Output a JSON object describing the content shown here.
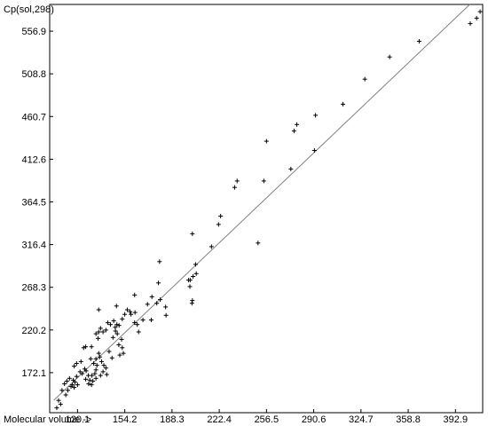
{
  "chart_data": {
    "type": "scatter",
    "title": "",
    "xlabel": "Molecular volume ->",
    "ylabel": "Cp(sol,298)",
    "xlim": [
      103,
      414
    ],
    "ylim": [
      127,
      602
    ],
    "x_ticks": [
      {
        "value": 120.1,
        "label": "120.1"
      },
      {
        "value": 154.2,
        "label": "154.2"
      },
      {
        "value": 188.3,
        "label": "188.3"
      },
      {
        "value": 222.4,
        "label": "222.4"
      },
      {
        "value": 256.5,
        "label": "256.5"
      },
      {
        "value": 290.6,
        "label": "290.6"
      },
      {
        "value": 324.7,
        "label": "324.7"
      },
      {
        "value": 358.8,
        "label": "358.8"
      },
      {
        "value": 392.9,
        "label": "392.9"
      }
    ],
    "y_ticks": [
      {
        "value": 172.1,
        "label": "172.1"
      },
      {
        "value": 220.2,
        "label": "220.2"
      },
      {
        "value": 268.3,
        "label": "268.3"
      },
      {
        "value": 316.4,
        "label": "316.4"
      },
      {
        "value": 364.5,
        "label": "364.5"
      },
      {
        "value": 412.6,
        "label": "412.6"
      },
      {
        "value": 460.7,
        "label": "460.7"
      },
      {
        "value": 508.8,
        "label": "508.8"
      },
      {
        "value": 556.9,
        "label": "556.9"
      }
    ],
    "grid": false,
    "point_marker": "+",
    "point_color": "#000000",
    "line_color": "#808080",
    "fit_line": {
      "x": [
        103,
        414
      ],
      "y": [
        141,
        603
      ]
    },
    "points": [
      [
        105.1,
        132.4
      ],
      [
        107.9,
        136.6
      ],
      [
        106.4,
        140.8
      ],
      [
        111.6,
        147.0
      ],
      [
        108.9,
        152.2
      ],
      [
        113.1,
        152.2
      ],
      [
        110.7,
        159.5
      ],
      [
        115.4,
        156.4
      ],
      [
        116.4,
        158.4
      ],
      [
        117.7,
        155.4
      ],
      [
        118.3,
        161.6
      ],
      [
        120.1,
        158.4
      ],
      [
        117.0,
        163.7
      ],
      [
        114.3,
        165.7
      ],
      [
        112.4,
        162.6
      ],
      [
        119.4,
        167.8
      ],
      [
        121.9,
        173.1
      ],
      [
        123.5,
        171.0
      ],
      [
        125.3,
        176.2
      ],
      [
        126.3,
        174.1
      ],
      [
        127.9,
        168.9
      ],
      [
        126.0,
        164.7
      ],
      [
        128.9,
        163.7
      ],
      [
        128.1,
        159.5
      ],
      [
        130.2,
        158.4
      ],
      [
        131.2,
        162.6
      ],
      [
        130.5,
        168.9
      ],
      [
        132.6,
        171.0
      ],
      [
        133.4,
        175.2
      ],
      [
        134.1,
        180.4
      ],
      [
        131.8,
        182.5
      ],
      [
        129.6,
        187.7
      ],
      [
        133.4,
        187.7
      ],
      [
        135.4,
        193.9
      ],
      [
        136.2,
        189.8
      ],
      [
        137.5,
        184.6
      ],
      [
        139.1,
        180.4
      ],
      [
        140.6,
        177.3
      ],
      [
        138.5,
        173.1
      ],
      [
        141.2,
        170.0
      ],
      [
        136.7,
        168.9
      ],
      [
        133.4,
        165.7
      ],
      [
        117.7,
        179.4
      ],
      [
        119.4,
        182.5
      ],
      [
        122.6,
        184.6
      ],
      [
        124.5,
        200.2
      ],
      [
        126.0,
        201.3
      ],
      [
        130.2,
        201.3
      ],
      [
        134.9,
        210.7
      ],
      [
        133.4,
        215.9
      ],
      [
        135.4,
        218.0
      ],
      [
        138.5,
        218.0
      ],
      [
        136.7,
        222.1
      ],
      [
        140.6,
        220.1
      ],
      [
        141.9,
        228.4
      ],
      [
        143.9,
        226.3
      ],
      [
        146.2,
        230.5
      ],
      [
        147.5,
        219.0
      ],
      [
        148.8,
        215.9
      ],
      [
        149.9,
        203.4
      ],
      [
        151.9,
        209.6
      ],
      [
        152.4,
        200.2
      ],
      [
        153.2,
        193.9
      ],
      [
        150.6,
        191.9
      ],
      [
        145.0,
        188.7
      ],
      [
        142.9,
        196.0
      ],
      [
        145.7,
        211.7
      ],
      [
        147.3,
        223.2
      ],
      [
        148.5,
        226.3
      ],
      [
        150.1,
        225.3
      ],
      [
        152.4,
        232.6
      ],
      [
        154.2,
        237.8
      ],
      [
        156.0,
        243.0
      ],
      [
        158.0,
        240.9
      ],
      [
        158.7,
        237.8
      ],
      [
        161.6,
        239.9
      ],
      [
        161.3,
        228.4
      ],
      [
        163.2,
        226.3
      ],
      [
        164.2,
        218.0
      ],
      [
        167.3,
        231.5
      ],
      [
        170.6,
        249.2
      ],
      [
        173.8,
        257.6
      ],
      [
        177.3,
        250.3
      ],
      [
        179.8,
        254.4
      ],
      [
        183.7,
        246.1
      ],
      [
        184.0,
        236.7
      ],
      [
        173.3,
        231.5
      ],
      [
        178.5,
        273.2
      ],
      [
        179.3,
        297.2
      ],
      [
        161.3,
        259.6
      ],
      [
        135.4,
        243.0
      ],
      [
        148.2,
        247.2
      ],
      [
        202.7,
        250.3
      ],
      [
        203.0,
        253.4
      ],
      [
        201.2,
        269.1
      ],
      [
        201.4,
        276.4
      ],
      [
        203.5,
        280.5
      ],
      [
        205.8,
        283.7
      ],
      [
        205.3,
        294.1
      ],
      [
        200.2,
        276.4
      ],
      [
        203.0,
        328.6
      ],
      [
        216.8,
        314.1
      ],
      [
        221.9,
        339.1
      ],
      [
        223.4,
        348.5
      ],
      [
        233.5,
        380.8
      ],
      [
        235.3,
        388.1
      ],
      [
        250.4,
        318.2
      ],
      [
        254.6,
        388.1
      ],
      [
        256.5,
        432.9
      ],
      [
        274.1,
        401.6
      ],
      [
        276.4,
        444.4
      ],
      [
        278.4,
        451.7
      ],
      [
        291.1,
        422.5
      ],
      [
        291.9,
        462.1
      ],
      [
        311.7,
        474.6
      ],
      [
        327.5,
        502.8
      ],
      [
        345.4,
        527.8
      ],
      [
        366.7,
        545.5
      ],
      [
        403.6,
        565.4
      ],
      [
        408.2,
        571.6
      ],
      [
        410.7,
        578.9
      ]
    ]
  }
}
